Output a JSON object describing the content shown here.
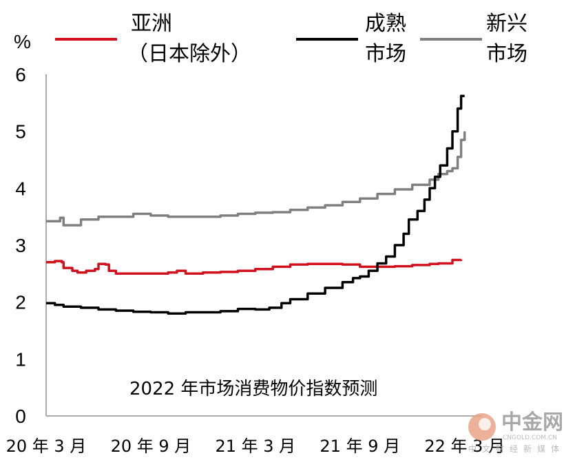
{
  "chart_data": {
    "type": "line",
    "subtitle": "2022 年市场消费物价指数预测",
    "unit_label": "%",
    "ylim": [
      0,
      6
    ],
    "yticks": [
      "0",
      "1",
      "2",
      "3",
      "4",
      "5",
      "6"
    ],
    "xlim": [
      0,
      25
    ],
    "xticks": [
      {
        "x": 0,
        "label": "20 年 3 月"
      },
      {
        "x": 6,
        "label": "20 年 9 月"
      },
      {
        "x": 12,
        "label": "21 年 3 月"
      },
      {
        "x": 18,
        "label": "21 年 9 月"
      },
      {
        "x": 24,
        "label": "22 年 3 月"
      }
    ],
    "grid": false,
    "legend_position": "top",
    "series": [
      {
        "name": "亚洲（日本除外）",
        "legend_lines": [
          "亚洲",
          "（日本除外）"
        ],
        "color": "#d0101c",
        "points": [
          [
            0,
            2.7
          ],
          [
            0.5,
            2.72
          ],
          [
            0.9,
            2.7
          ],
          [
            1.0,
            2.6
          ],
          [
            1.5,
            2.55
          ],
          [
            1.8,
            2.52
          ],
          [
            2.3,
            2.55
          ],
          [
            2.8,
            2.58
          ],
          [
            3.0,
            2.67
          ],
          [
            3.4,
            2.66
          ],
          [
            3.6,
            2.55
          ],
          [
            4.0,
            2.5
          ],
          [
            5.0,
            2.5
          ],
          [
            6.0,
            2.5
          ],
          [
            7.0,
            2.52
          ],
          [
            7.5,
            2.55
          ],
          [
            8.0,
            2.5
          ],
          [
            9.0,
            2.52
          ],
          [
            10.0,
            2.53
          ],
          [
            11.0,
            2.55
          ],
          [
            12.0,
            2.58
          ],
          [
            13.0,
            2.62
          ],
          [
            14.0,
            2.66
          ],
          [
            15.0,
            2.67
          ],
          [
            16.0,
            2.67
          ],
          [
            17.0,
            2.66
          ],
          [
            18.0,
            2.62
          ],
          [
            19.0,
            2.62
          ],
          [
            20.0,
            2.63
          ],
          [
            21.0,
            2.65
          ],
          [
            22.0,
            2.67
          ],
          [
            22.5,
            2.68
          ],
          [
            23.0,
            2.68
          ],
          [
            23.3,
            2.74
          ],
          [
            23.8,
            2.75
          ]
        ]
      },
      {
        "name": "成熟市场",
        "legend_lines": [
          "成熟",
          "市场"
        ],
        "color": "#000000",
        "points": [
          [
            0,
            1.98
          ],
          [
            0.5,
            1.95
          ],
          [
            1.0,
            1.92
          ],
          [
            2.0,
            1.9
          ],
          [
            3.0,
            1.87
          ],
          [
            4.0,
            1.85
          ],
          [
            5.0,
            1.83
          ],
          [
            6.0,
            1.82
          ],
          [
            7.0,
            1.8
          ],
          [
            8.0,
            1.82
          ],
          [
            9.0,
            1.82
          ],
          [
            10.0,
            1.84
          ],
          [
            11.0,
            1.88
          ],
          [
            12.0,
            1.87
          ],
          [
            12.8,
            1.9
          ],
          [
            13.5,
            1.98
          ],
          [
            14.0,
            2.05
          ],
          [
            15.0,
            2.15
          ],
          [
            16.0,
            2.25
          ],
          [
            17.0,
            2.35
          ],
          [
            17.6,
            2.42
          ],
          [
            18.0,
            2.45
          ],
          [
            18.5,
            2.55
          ],
          [
            19.0,
            2.68
          ],
          [
            19.5,
            2.8
          ],
          [
            20.0,
            3.0
          ],
          [
            20.5,
            3.2
          ],
          [
            20.8,
            3.45
          ],
          [
            21.3,
            3.6
          ],
          [
            21.7,
            3.8
          ],
          [
            22.0,
            4.0
          ],
          [
            22.3,
            4.2
          ],
          [
            22.6,
            4.4
          ],
          [
            23.0,
            4.7
          ],
          [
            23.3,
            5.0
          ],
          [
            23.6,
            5.4
          ],
          [
            23.8,
            5.62
          ],
          [
            24.0,
            5.62
          ]
        ]
      },
      {
        "name": "新兴市场",
        "legend_lines": [
          "新兴",
          "市场"
        ],
        "color": "#7f7f7f",
        "points": [
          [
            0,
            3.42
          ],
          [
            0.5,
            3.42
          ],
          [
            0.8,
            3.48
          ],
          [
            1.0,
            3.35
          ],
          [
            1.5,
            3.35
          ],
          [
            2.0,
            3.45
          ],
          [
            3.0,
            3.5
          ],
          [
            4.0,
            3.5
          ],
          [
            5.0,
            3.55
          ],
          [
            6.0,
            3.52
          ],
          [
            7.0,
            3.5
          ],
          [
            8.0,
            3.5
          ],
          [
            9.0,
            3.5
          ],
          [
            10.0,
            3.52
          ],
          [
            11.0,
            3.55
          ],
          [
            12.0,
            3.57
          ],
          [
            13.0,
            3.58
          ],
          [
            14.0,
            3.62
          ],
          [
            15.0,
            3.66
          ],
          [
            16.0,
            3.7
          ],
          [
            17.0,
            3.76
          ],
          [
            18.0,
            3.82
          ],
          [
            19.0,
            3.9
          ],
          [
            20.0,
            3.98
          ],
          [
            21.0,
            4.06
          ],
          [
            22.0,
            4.15
          ],
          [
            22.5,
            4.25
          ],
          [
            23.0,
            4.3
          ],
          [
            23.3,
            4.35
          ],
          [
            23.6,
            4.55
          ],
          [
            23.8,
            4.85
          ],
          [
            24.0,
            5.0
          ]
        ]
      }
    ]
  },
  "watermark": {
    "main": "中金网",
    "url": "CNGOLD.COM.CN",
    "tagline": "中文财经新媒体"
  }
}
